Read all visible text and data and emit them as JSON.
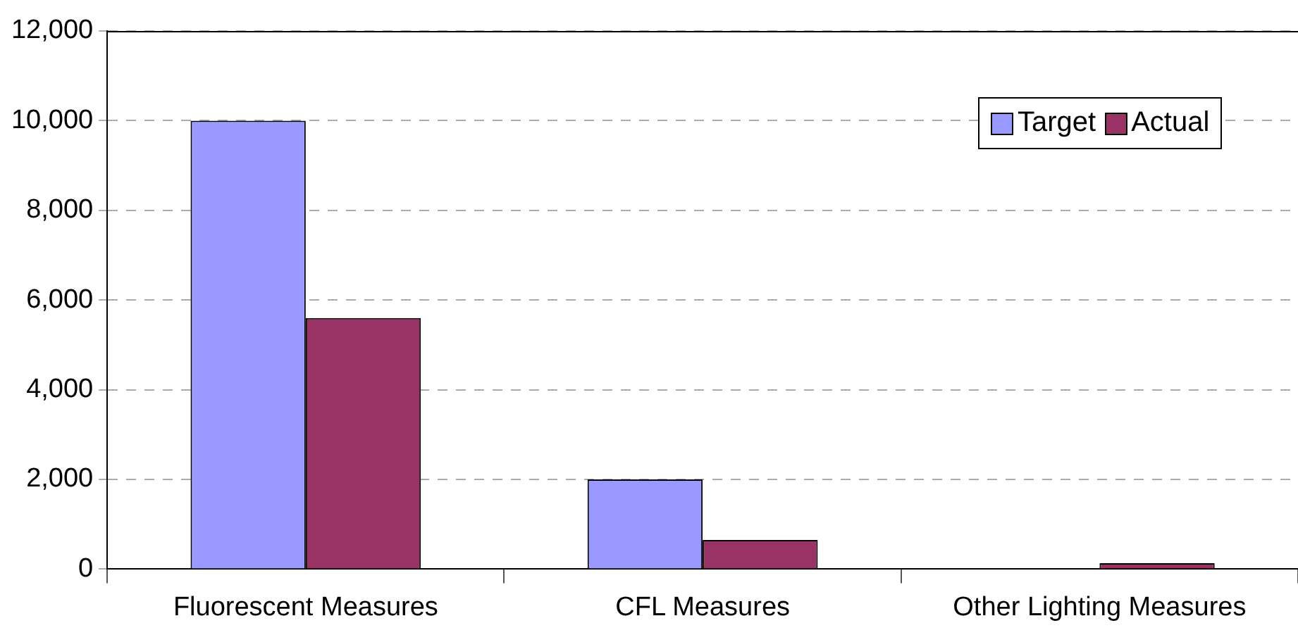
{
  "chart_data": {
    "type": "bar",
    "categories": [
      "Fluorescent Measures",
      "CFL Measures",
      "Other Lighting Measures"
    ],
    "series": [
      {
        "name": "Target",
        "color": "#9999ff",
        "values": [
          10000,
          2000,
          0
        ]
      },
      {
        "name": "Actual",
        "color": "#993366",
        "values": [
          5600,
          650,
          130
        ]
      }
    ],
    "ylim": [
      0,
      12000
    ],
    "yticks": [
      {
        "value": 0,
        "label": "0"
      },
      {
        "value": 2000,
        "label": "2,000"
      },
      {
        "value": 4000,
        "label": "4,000"
      },
      {
        "value": 6000,
        "label": "6,000"
      },
      {
        "value": 8000,
        "label": "8,000"
      },
      {
        "value": 10000,
        "label": "10,000"
      },
      {
        "value": 12000,
        "label": "12,000"
      }
    ],
    "grid": "y",
    "legend": "top right"
  }
}
